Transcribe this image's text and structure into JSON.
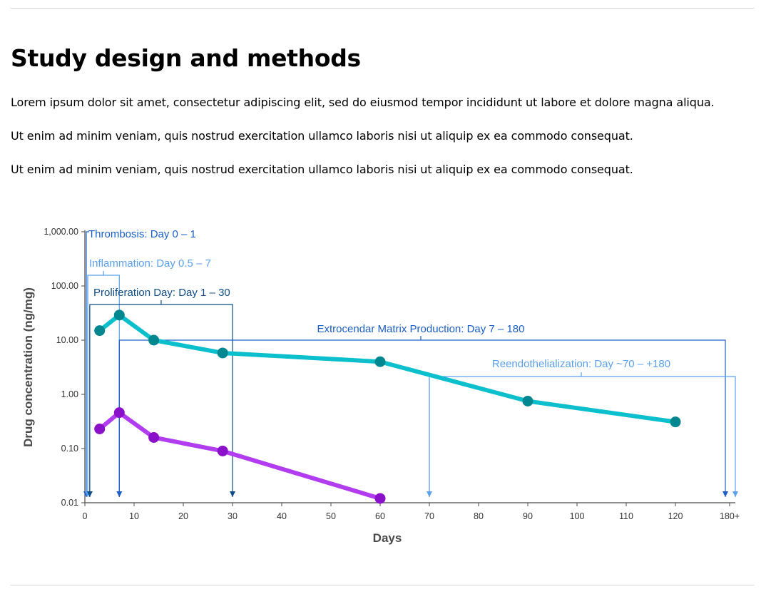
{
  "heading": "Study design and methods",
  "paragraphs": [
    "Lorem ipsum dolor sit amet, consectetur adipiscing elit, sed do eiusmod tempor incididunt ut labore et dolore magna aliqua.",
    "Ut enim ad minim veniam, quis nostrud exercitation ullamco laboris nisi ut aliquip ex ea commodo consequat.",
    "Ut enim ad minim veniam, quis nostrud exercitation ullamco laboris nisi ut aliquip ex ea commodo consequat."
  ],
  "chart_data": {
    "type": "line",
    "title": "",
    "xlabel": "Days",
    "ylabel": "Drug concentration (ng/mg)",
    "yscale": "log",
    "ylim": [
      0.01,
      1000
    ],
    "yticks": [
      "1,000.00",
      "100.00",
      "10.00",
      "1.00",
      "0.10",
      "0.01"
    ],
    "ytick_values": [
      1000,
      100,
      10,
      1,
      0.1,
      0.01
    ],
    "xticks": [
      "0",
      "10",
      "20",
      "30",
      "40",
      "50",
      "60",
      "70",
      "80",
      "90",
      "100",
      "110",
      "120",
      "180+"
    ],
    "xtick_values": [
      0,
      10,
      20,
      30,
      40,
      50,
      60,
      70,
      80,
      90,
      100,
      110,
      120,
      180
    ],
    "grid": false,
    "legend": "none",
    "series": [
      {
        "line_color": "#0bbfcc",
        "marker_color": "#00878f",
        "x": [
          3,
          7,
          14,
          28,
          60,
          90,
          120
        ],
        "y": [
          15,
          29,
          10,
          5.8,
          4,
          0.75,
          0.31
        ]
      },
      {
        "line_color": "#b13cf0",
        "marker_color": "#8a10c9",
        "x": [
          3,
          7,
          14,
          28,
          60
        ],
        "y": [
          0.23,
          0.46,
          0.16,
          0.09,
          0.012
        ]
      }
    ],
    "phases": [
      {
        "label": "Thrombosis: Day 0 – 1",
        "start": 0,
        "end": 1,
        "color": "#1a5fc8"
      },
      {
        "label": "Inflammation: Day 0.5 – 7",
        "start": 0.5,
        "end": 7,
        "color": "#5aa0ec"
      },
      {
        "label": "Proliferation Day: Day 1 – 30",
        "start": 1,
        "end": 30,
        "color": "#0d4d86"
      },
      {
        "label": "Extrocendar Matrix Production: Day 7 – 180",
        "start": 7,
        "end": 180,
        "color": "#1a5fc8"
      },
      {
        "label": "Reendothelialization: Day ~70 – +180",
        "start": 70,
        "end": 180,
        "color": "#5aa0ec"
      }
    ]
  }
}
